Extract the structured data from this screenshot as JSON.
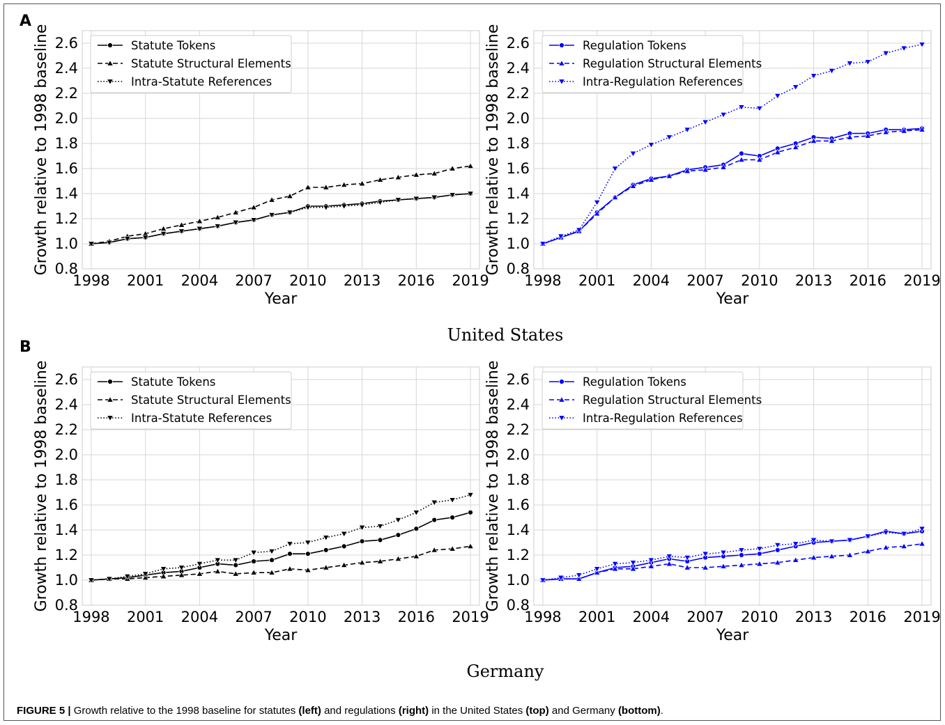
{
  "panel_letters": [
    "A",
    "B"
  ],
  "countries": [
    "United States",
    "Germany"
  ],
  "caption": {
    "label": "FIGURE 5 |",
    "parts": [
      {
        "text": " Growth relative to the 1998 baseline for statutes ",
        "bold": false
      },
      {
        "text": "(left)",
        "bold": true
      },
      {
        "text": " and regulations ",
        "bold": false
      },
      {
        "text": "(right)",
        "bold": true
      },
      {
        "text": " in the United States ",
        "bold": false
      },
      {
        "text": "(top)",
        "bold": true
      },
      {
        "text": " and Germany ",
        "bold": false
      },
      {
        "text": "(bottom)",
        "bold": true
      },
      {
        "text": ".",
        "bold": false
      }
    ]
  },
  "styles": {
    "black": "#000000",
    "blue": "#0000ff",
    "grid": "#d6d6d6",
    "legend_border": "#cccccc"
  },
  "chart_data": [
    {
      "id": "us-statutes",
      "type": "line",
      "color": "#000000",
      "xlabel": "Year",
      "ylabel": "Growth relative to 1998 baseline",
      "xlim": [
        1997.5,
        2019.5
      ],
      "ylim": [
        0.8,
        2.7
      ],
      "xticks": [
        1998,
        2001,
        2004,
        2007,
        2010,
        2013,
        2016,
        2019
      ],
      "yticks": [
        "0.8",
        "1.0",
        "1.2",
        "1.4",
        "1.6",
        "1.8",
        "2.0",
        "2.2",
        "2.4",
        "2.6"
      ],
      "grid": true,
      "legend_position": "top-left",
      "x": [
        1998,
        1999,
        2000,
        2001,
        2002,
        2003,
        2004,
        2005,
        2006,
        2007,
        2008,
        2009,
        2010,
        2011,
        2012,
        2013,
        2014,
        2015,
        2016,
        2017,
        2018,
        2019
      ],
      "series": [
        {
          "name": "Statute Tokens",
          "dash": "solid",
          "marker": "circle",
          "values": [
            1.0,
            1.01,
            1.04,
            1.05,
            1.08,
            1.1,
            1.12,
            1.14,
            1.17,
            1.19,
            1.23,
            1.25,
            1.3,
            1.3,
            1.31,
            1.32,
            1.34,
            1.35,
            1.36,
            1.37,
            1.39,
            1.4
          ]
        },
        {
          "name": "Statute Structural Elements",
          "dash": "dashed",
          "marker": "triangle-up",
          "values": [
            1.0,
            1.02,
            1.06,
            1.08,
            1.12,
            1.15,
            1.18,
            1.21,
            1.25,
            1.29,
            1.35,
            1.38,
            1.45,
            1.45,
            1.47,
            1.48,
            1.51,
            1.53,
            1.55,
            1.56,
            1.6,
            1.62
          ]
        },
        {
          "name": "Intra-Statute References",
          "dash": "dotted",
          "marker": "triangle-down",
          "values": [
            1.0,
            1.01,
            1.04,
            1.05,
            1.08,
            1.1,
            1.12,
            1.14,
            1.17,
            1.19,
            1.23,
            1.25,
            1.29,
            1.29,
            1.3,
            1.31,
            1.33,
            1.35,
            1.36,
            1.37,
            1.39,
            1.4
          ]
        }
      ]
    },
    {
      "id": "us-regulations",
      "type": "line",
      "color": "#0000ff",
      "xlabel": "Year",
      "ylabel": "Growth relative to 1998 baseline",
      "xlim": [
        1997.5,
        2019.5
      ],
      "ylim": [
        0.8,
        2.7
      ],
      "xticks": [
        1998,
        2001,
        2004,
        2007,
        2010,
        2013,
        2016,
        2019
      ],
      "yticks": [
        "0.8",
        "1.0",
        "1.2",
        "1.4",
        "1.6",
        "1.8",
        "2.0",
        "2.2",
        "2.4",
        "2.6"
      ],
      "grid": true,
      "legend_position": "top-left",
      "x": [
        1998,
        1999,
        2000,
        2001,
        2002,
        2003,
        2004,
        2005,
        2006,
        2007,
        2008,
        2009,
        2010,
        2011,
        2012,
        2013,
        2014,
        2015,
        2016,
        2017,
        2018,
        2019
      ],
      "series": [
        {
          "name": "Regulation Tokens",
          "dash": "solid",
          "marker": "circle",
          "values": [
            1.0,
            1.05,
            1.1,
            1.25,
            1.37,
            1.47,
            1.52,
            1.54,
            1.59,
            1.61,
            1.63,
            1.72,
            1.7,
            1.76,
            1.8,
            1.85,
            1.84,
            1.88,
            1.88,
            1.91,
            1.91,
            1.92
          ]
        },
        {
          "name": "Regulation Structural Elements",
          "dash": "dashed",
          "marker": "triangle-up",
          "values": [
            1.0,
            1.05,
            1.1,
            1.24,
            1.37,
            1.46,
            1.51,
            1.54,
            1.58,
            1.59,
            1.61,
            1.67,
            1.67,
            1.73,
            1.77,
            1.82,
            1.82,
            1.85,
            1.86,
            1.89,
            1.9,
            1.91
          ]
        },
        {
          "name": "Intra-Regulation References",
          "dash": "dotted",
          "marker": "triangle-down",
          "values": [
            1.0,
            1.06,
            1.11,
            1.33,
            1.6,
            1.72,
            1.79,
            1.85,
            1.91,
            1.97,
            2.03,
            2.09,
            2.08,
            2.18,
            2.25,
            2.34,
            2.38,
            2.44,
            2.45,
            2.52,
            2.56,
            2.59
          ]
        }
      ]
    },
    {
      "id": "de-statutes",
      "type": "line",
      "color": "#000000",
      "xlabel": "Year",
      "ylabel": "Growth relative to 1998 baseline",
      "xlim": [
        1997.5,
        2019.5
      ],
      "ylim": [
        0.8,
        2.7
      ],
      "xticks": [
        1998,
        2001,
        2004,
        2007,
        2010,
        2013,
        2016,
        2019
      ],
      "yticks": [
        "0.8",
        "1.0",
        "1.2",
        "1.4",
        "1.6",
        "1.8",
        "2.0",
        "2.2",
        "2.4",
        "2.6"
      ],
      "grid": true,
      "legend_position": "top-left",
      "x": [
        1998,
        1999,
        2000,
        2001,
        2002,
        2003,
        2004,
        2005,
        2006,
        2007,
        2008,
        2009,
        2010,
        2011,
        2012,
        2013,
        2014,
        2015,
        2016,
        2017,
        2018,
        2019
      ],
      "series": [
        {
          "name": "Statute Tokens",
          "dash": "solid",
          "marker": "circle",
          "values": [
            1.0,
            1.01,
            1.02,
            1.04,
            1.06,
            1.07,
            1.1,
            1.13,
            1.12,
            1.15,
            1.16,
            1.21,
            1.21,
            1.24,
            1.27,
            1.31,
            1.32,
            1.36,
            1.41,
            1.48,
            1.5,
            1.54
          ]
        },
        {
          "name": "Statute Structural Elements",
          "dash": "dashed",
          "marker": "triangle-up",
          "values": [
            1.0,
            1.01,
            1.01,
            1.02,
            1.03,
            1.04,
            1.05,
            1.07,
            1.05,
            1.06,
            1.06,
            1.09,
            1.08,
            1.1,
            1.12,
            1.14,
            1.15,
            1.17,
            1.19,
            1.24,
            1.25,
            1.27
          ]
        },
        {
          "name": "Intra-Statute References",
          "dash": "dotted",
          "marker": "triangle-down",
          "values": [
            1.0,
            1.01,
            1.03,
            1.05,
            1.09,
            1.1,
            1.13,
            1.16,
            1.16,
            1.22,
            1.23,
            1.29,
            1.3,
            1.34,
            1.37,
            1.42,
            1.43,
            1.48,
            1.54,
            1.62,
            1.64,
            1.68
          ]
        }
      ]
    },
    {
      "id": "de-regulations",
      "type": "line",
      "color": "#0000ff",
      "xlabel": "Year",
      "ylabel": "Growth relative to 1998 baseline",
      "xlim": [
        1997.5,
        2019.5
      ],
      "ylim": [
        0.8,
        2.7
      ],
      "xticks": [
        1998,
        2001,
        2004,
        2007,
        2010,
        2013,
        2016,
        2019
      ],
      "yticks": [
        "0.8",
        "1.0",
        "1.2",
        "1.4",
        "1.6",
        "1.8",
        "2.0",
        "2.2",
        "2.4",
        "2.6"
      ],
      "grid": true,
      "legend_position": "top-left",
      "x": [
        1998,
        1999,
        2000,
        2001,
        2002,
        2003,
        2004,
        2005,
        2006,
        2007,
        2008,
        2009,
        2010,
        2011,
        2012,
        2013,
        2014,
        2015,
        2016,
        2017,
        2018,
        2019
      ],
      "series": [
        {
          "name": "Regulation Tokens",
          "dash": "solid",
          "marker": "circle",
          "values": [
            1.0,
            1.01,
            1.01,
            1.06,
            1.1,
            1.11,
            1.14,
            1.17,
            1.15,
            1.18,
            1.19,
            1.2,
            1.21,
            1.24,
            1.27,
            1.3,
            1.31,
            1.32,
            1.35,
            1.39,
            1.37,
            1.39
          ]
        },
        {
          "name": "Regulation Structural Elements",
          "dash": "dashed",
          "marker": "triangle-up",
          "values": [
            1.0,
            1.01,
            1.01,
            1.06,
            1.09,
            1.09,
            1.11,
            1.13,
            1.1,
            1.1,
            1.11,
            1.12,
            1.13,
            1.14,
            1.16,
            1.18,
            1.19,
            1.2,
            1.23,
            1.26,
            1.27,
            1.29
          ]
        },
        {
          "name": "Intra-Regulation References",
          "dash": "dotted",
          "marker": "triangle-down",
          "values": [
            1.0,
            1.02,
            1.04,
            1.09,
            1.13,
            1.14,
            1.16,
            1.19,
            1.18,
            1.21,
            1.22,
            1.24,
            1.25,
            1.28,
            1.29,
            1.32,
            1.31,
            1.32,
            1.35,
            1.38,
            1.37,
            1.41
          ]
        }
      ]
    }
  ]
}
